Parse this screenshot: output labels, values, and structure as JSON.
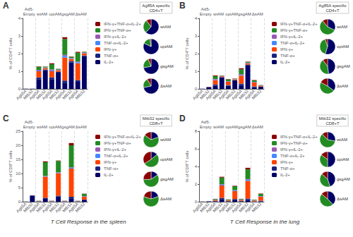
{
  "chart_data": [
    {
      "type": "bar",
      "title": "Ag85A specific\nCD4+T",
      "subtitle": "A",
      "ylabel": "% of CD4⁺T cells",
      "annotations": [
        "Ad5-\nEmpty",
        "wtAM",
        "optAM",
        "gsgAM",
        "ΔsAM"
      ],
      "categories": [
        "Ag85A",
        "Mtb32",
        "Ag85A",
        "Mtb32",
        "Ag85A",
        "Mtb32",
        "Ag85A",
        "Mtb32",
        "Ag85A",
        "Mtb32"
      ],
      "stacked": true,
      "grid": false,
      "legend": "right",
      "ylim": [
        0,
        4
      ],
      "yticks": [
        0,
        1,
        2,
        3,
        4
      ],
      "series": [
        {
          "name": "IL-2+",
          "color": "#000066",
          "values": [
            0.01,
            0.01,
            0.55,
            1.05,
            0.55,
            0.92,
            0.35,
            1.5,
            0.4,
            1.85
          ]
        },
        {
          "name": "TNF-α+",
          "color": "#1A237E",
          "values": [
            0.0,
            0.0,
            0.1,
            0.05,
            0.1,
            0.05,
            0.12,
            0.08,
            0.1,
            0.05
          ]
        },
        {
          "name": "IFN-γ+",
          "color": "#FF4400",
          "values": [
            0.0,
            0.0,
            0.35,
            0.08,
            0.35,
            0.08,
            1.3,
            0.12,
            0.95,
            0.12
          ]
        },
        {
          "name": "TNF-α+IL-2+",
          "color": "#4488FF",
          "values": [
            0.0,
            0.0,
            0.04,
            0.02,
            0.05,
            0.02,
            0.1,
            0.03,
            0.06,
            0.02
          ]
        },
        {
          "name": "IFN-γ+IL-2+",
          "color": "#9B59B6",
          "values": [
            0.0,
            0.0,
            0.04,
            0.02,
            0.05,
            0.02,
            0.06,
            0.02,
            0.04,
            0.02
          ]
        },
        {
          "name": "IFN-γ+TNF-α+",
          "color": "#228B22",
          "values": [
            0.0,
            0.0,
            0.18,
            0.04,
            0.3,
            0.04,
            0.9,
            0.07,
            0.5,
            0.04
          ]
        },
        {
          "name": "IFN-γ+TNF-α+IL-2+",
          "color": "#8B0000",
          "values": [
            0.0,
            0.0,
            0.02,
            0.01,
            0.05,
            0.01,
            0.1,
            0.02,
            0.05,
            0.01
          ]
        }
      ]
    },
    {
      "type": "pie",
      "title": "wtAM",
      "values": [
        0.62,
        0.28,
        0.1
      ],
      "colors": [
        "#000066",
        "#228B22",
        "#8B0000"
      ]
    },
    {
      "type": "pie",
      "title": "optAM",
      "values": [
        0.82,
        0.16,
        0.02
      ],
      "colors": [
        "#000066",
        "#228B22",
        "#8B0000"
      ]
    },
    {
      "type": "pie",
      "title": "gsgAM",
      "values": [
        0.72,
        0.22,
        0.06
      ],
      "colors": [
        "#000066",
        "#228B22",
        "#8B0000"
      ]
    },
    {
      "type": "pie",
      "title": "ΔsAM",
      "values": [
        0.72,
        0.2,
        0.08
      ],
      "colors": [
        "#000066",
        "#228B22",
        "#8B0000"
      ]
    },
    {
      "type": "bar",
      "title": "Ag85A specific\nCD4+T",
      "subtitle": "B",
      "ylabel": "% of CD4⁺T cells",
      "annotations": [
        "Ad5-\nEmpty",
        "wtAM",
        "optAM",
        "gsgAM",
        "ΔsAM"
      ],
      "categories": [
        "Ag85A",
        "Mtb32",
        "Ag85A",
        "Mtb32",
        "Ag85A",
        "Mtb32",
        "Ag85A",
        "Mtb32",
        "Ag85A",
        "Mtb32"
      ],
      "stacked": true,
      "grid": false,
      "legend": "right",
      "ylim": [
        0,
        4
      ],
      "yticks": [
        0,
        1,
        2,
        3,
        4
      ],
      "series": [
        {
          "name": "IL-2+",
          "color": "#000066",
          "values": [
            0.01,
            0.1,
            0.18,
            0.65,
            0.18,
            0.48,
            0.22,
            1.35,
            0.1,
            0.12
          ]
        },
        {
          "name": "TNF-α+",
          "color": "#1A237E",
          "values": [
            0.0,
            0.01,
            0.07,
            0.02,
            0.04,
            0.02,
            0.08,
            0.03,
            0.04,
            0.01
          ]
        },
        {
          "name": "IFN-γ+",
          "color": "#FF4400",
          "values": [
            0.0,
            0.01,
            0.25,
            0.04,
            0.18,
            0.04,
            0.45,
            0.07,
            0.22,
            0.04
          ]
        },
        {
          "name": "TNF-α+IL-2+",
          "color": "#4488FF",
          "values": [
            0.0,
            0.0,
            0.03,
            0.01,
            0.02,
            0.01,
            0.04,
            0.02,
            0.02,
            0.01
          ]
        },
        {
          "name": "IFN-γ+IL-2+",
          "color": "#9B59B6",
          "values": [
            0.0,
            0.0,
            0.03,
            0.01,
            0.02,
            0.01,
            0.04,
            0.02,
            0.02,
            0.01
          ]
        },
        {
          "name": "IFN-γ+TNF-α+",
          "color": "#228B22",
          "values": [
            0.0,
            0.0,
            0.16,
            0.02,
            0.1,
            0.02,
            0.28,
            0.04,
            0.08,
            0.02
          ]
        },
        {
          "name": "IFN-γ+TNF-α+IL-2+",
          "color": "#8B0000",
          "values": [
            0.0,
            0.0,
            0.04,
            0.01,
            0.02,
            0.01,
            0.06,
            0.02,
            0.02,
            0.01
          ]
        }
      ]
    },
    {
      "type": "pie",
      "title": "wtAM",
      "values": [
        0.32,
        0.57,
        0.11
      ],
      "colors": [
        "#000066",
        "#228B22",
        "#8B0000"
      ]
    },
    {
      "type": "pie",
      "title": "optAM",
      "values": [
        0.55,
        0.4,
        0.05
      ],
      "colors": [
        "#000066",
        "#228B22",
        "#8B0000"
      ]
    },
    {
      "type": "pie",
      "title": "gsgAM",
      "values": [
        0.48,
        0.42,
        0.1
      ],
      "colors": [
        "#000066",
        "#228B22",
        "#8B0000"
      ]
    },
    {
      "type": "pie",
      "title": "ΔsAM",
      "values": [
        0.35,
        0.48,
        0.17
      ],
      "colors": [
        "#000066",
        "#228B22",
        "#8B0000"
      ]
    },
    {
      "type": "bar",
      "title": "Mtb32 specific\nCD8+T",
      "subtitle": "C",
      "ylabel": "% of CD8⁺T cells",
      "xlabel": "T Cell Response in the spleen",
      "annotations": [
        "Ad5-\nEmpty",
        "wtAM",
        "optAM",
        "gsgAM",
        "ΔsAM"
      ],
      "categories": [
        "Ag85A",
        "Mtb32",
        "Ag85A",
        "Mtb32",
        "Ag85A",
        "Mtb32",
        "Ag85A",
        "Mtb32",
        "Ag85A",
        "Mtb32"
      ],
      "stacked": true,
      "grid": false,
      "legend": "right",
      "ylim": [
        0,
        25
      ],
      "yticks": [
        0,
        5,
        10,
        15,
        20,
        25
      ],
      "series": [
        {
          "name": "IL-2+",
          "color": "#000066",
          "values": [
            0.05,
            2.2,
            0.05,
            1.0,
            0.05,
            1.8,
            0.05,
            1.2,
            0.05,
            0.55
          ]
        },
        {
          "name": "TNF-α+",
          "color": "#1A237E",
          "values": [
            0.0,
            0.0,
            0.05,
            0.4,
            0.05,
            0.35,
            0.05,
            0.55,
            0.05,
            0.2
          ]
        },
        {
          "name": "IFN-γ+",
          "color": "#FF4400",
          "values": [
            0.0,
            0.0,
            0.05,
            7.5,
            0.05,
            8.0,
            0.05,
            10.0,
            0.05,
            1.1
          ]
        },
        {
          "name": "TNF-α+IL-2+",
          "color": "#4488FF",
          "values": [
            0.0,
            0.0,
            0.05,
            0.2,
            0.05,
            0.2,
            0.05,
            0.3,
            0.05,
            0.1
          ]
        },
        {
          "name": "IFN-γ+IL-2+",
          "color": "#9B59B6",
          "values": [
            0.0,
            0.0,
            0.05,
            0.1,
            0.05,
            0.1,
            0.05,
            0.15,
            0.05,
            0.05
          ]
        },
        {
          "name": "IFN-γ+TNF-α+",
          "color": "#228B22",
          "values": [
            0.0,
            0.0,
            0.05,
            4.8,
            0.05,
            4.0,
            0.05,
            7.8,
            0.05,
            0.75
          ]
        },
        {
          "name": "IFN-γ+TNF-α+IL-2+",
          "color": "#8B0000",
          "values": [
            0.0,
            0.0,
            0.05,
            0.3,
            0.05,
            0.15,
            0.05,
            0.8,
            0.05,
            0.1
          ]
        }
      ]
    },
    {
      "type": "pie",
      "title": "wtAM",
      "values": [
        0.2,
        0.65,
        0.15
      ],
      "colors": [
        "#000066",
        "#228B22",
        "#8B0000"
      ]
    },
    {
      "type": "pie",
      "title": "optAM",
      "values": [
        0.14,
        0.52,
        0.34
      ],
      "colors": [
        "#000066",
        "#228B22",
        "#8B0000"
      ]
    },
    {
      "type": "pie",
      "title": "gsgAM",
      "values": [
        0.16,
        0.58,
        0.26
      ],
      "colors": [
        "#000066",
        "#228B22",
        "#8B0000"
      ]
    },
    {
      "type": "pie",
      "title": "ΔsAM",
      "values": [
        0.2,
        0.6,
        0.2
      ],
      "colors": [
        "#000066",
        "#228B22",
        "#8B0000"
      ]
    },
    {
      "type": "bar",
      "title": "Mtb32 specific\nCD8+T",
      "subtitle": "D",
      "ylabel": "% of CD8⁺T cells",
      "xlabel": "T Cell Response in the lung",
      "annotations": [
        "Ad5-\nEmpty",
        "wtAM",
        "optAM",
        "gsgAM",
        "ΔsAM"
      ],
      "categories": [
        "Ag85A",
        "Mtb32",
        "Ag85A",
        "Mtb32",
        "Ag85A",
        "Mtb32",
        "Ag85A",
        "Mtb32",
        "Ag85A",
        "Mtb32"
      ],
      "stacked": true,
      "grid": false,
      "legend": "right",
      "ylim": [
        0,
        8
      ],
      "yticks": [
        0,
        2,
        4,
        6,
        8
      ],
      "series": [
        {
          "name": "IL-2+",
          "color": "#000066",
          "values": [
            0.02,
            0.05,
            0.05,
            0.3,
            0.05,
            0.22,
            0.05,
            0.18,
            0.02,
            0.05
          ]
        },
        {
          "name": "TNF-α+",
          "color": "#1A237E",
          "values": [
            0.0,
            0.0,
            0.04,
            0.14,
            0.02,
            0.09,
            0.04,
            0.18,
            0.02,
            0.07
          ]
        },
        {
          "name": "IFN-γ+",
          "color": "#FF4400",
          "values": [
            0.0,
            0.0,
            0.08,
            1.4,
            0.08,
            0.9,
            0.08,
            2.0,
            0.08,
            0.45
          ]
        },
        {
          "name": "TNF-α+IL-2+",
          "color": "#4488FF",
          "values": [
            0.0,
            0.0,
            0.02,
            0.1,
            0.02,
            0.07,
            0.02,
            0.14,
            0.02,
            0.05
          ]
        },
        {
          "name": "IFN-γ+IL-2+",
          "color": "#9B59B6",
          "values": [
            0.0,
            0.0,
            0.02,
            0.05,
            0.02,
            0.03,
            0.02,
            0.07,
            0.02,
            0.02
          ]
        },
        {
          "name": "IFN-γ+TNF-α+",
          "color": "#228B22",
          "values": [
            0.0,
            0.0,
            0.08,
            0.75,
            0.06,
            0.45,
            0.08,
            1.1,
            0.06,
            0.25
          ]
        },
        {
          "name": "IFN-γ+TNF-α+IL-2+",
          "color": "#8B0000",
          "values": [
            0.0,
            0.0,
            0.04,
            0.09,
            0.02,
            0.05,
            0.04,
            0.18,
            0.02,
            0.04
          ]
        }
      ]
    },
    {
      "type": "pie",
      "title": "wtAM",
      "values": [
        0.28,
        0.6,
        0.12
      ],
      "colors": [
        "#000066",
        "#228B22",
        "#8B0000"
      ]
    },
    {
      "type": "pie",
      "title": "optAM",
      "values": [
        0.5,
        0.35,
        0.15
      ],
      "colors": [
        "#000066",
        "#228B22",
        "#8B0000"
      ]
    },
    {
      "type": "pie",
      "title": "gsgAM",
      "values": [
        0.45,
        0.42,
        0.13
      ],
      "colors": [
        "#000066",
        "#228B22",
        "#8B0000"
      ]
    },
    {
      "type": "pie",
      "title": "ΔsAM",
      "values": [
        0.38,
        0.48,
        0.14
      ],
      "colors": [
        "#000066",
        "#228B22",
        "#8B0000"
      ]
    }
  ]
}
